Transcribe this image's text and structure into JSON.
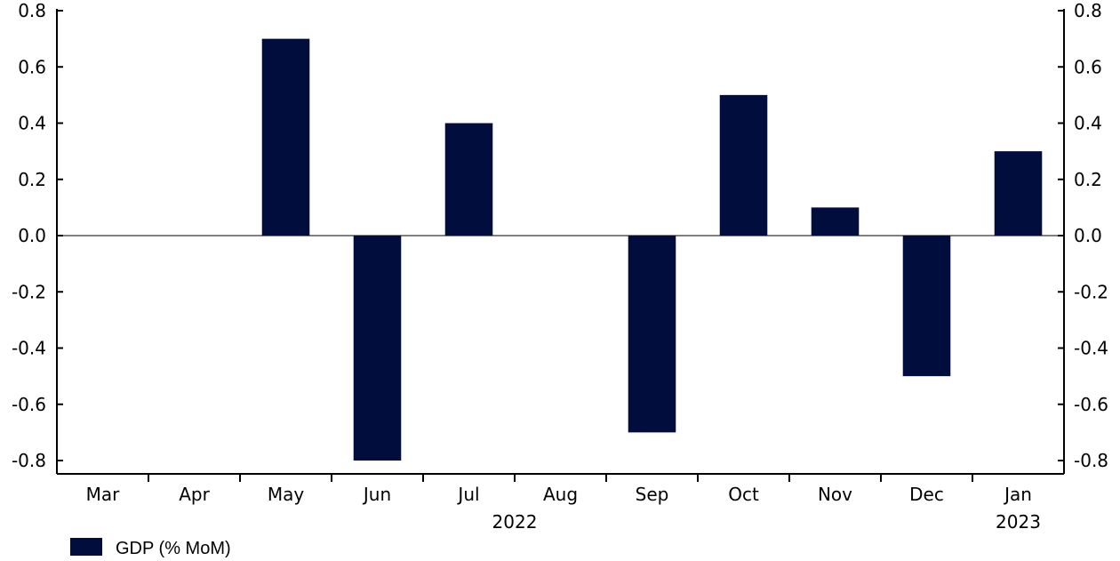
{
  "chart_data": {
    "type": "bar",
    "categories": [
      "Mar",
      "Apr",
      "May",
      "Jun",
      "Jul",
      "Aug",
      "Sep",
      "Oct",
      "Nov",
      "Dec",
      "Jan"
    ],
    "year_labels": [
      {
        "label": "2022",
        "category_span": [
          "Mar",
          "Dec"
        ]
      },
      {
        "label": "2023",
        "category_span": [
          "Jan",
          "Jan"
        ]
      }
    ],
    "series": [
      {
        "name": "GDP (% MoM)",
        "values": [
          0.0,
          0.0,
          0.7,
          -0.8,
          0.4,
          0.0,
          -0.7,
          0.5,
          0.1,
          -0.5,
          0.3
        ],
        "color": "#000d3d"
      }
    ],
    "ylim": [
      -0.8,
      0.8
    ],
    "yticks": [
      0.8,
      0.6,
      0.4,
      0.2,
      0.0,
      -0.2,
      -0.4,
      -0.6,
      -0.8
    ],
    "ytick_labels": [
      "0.8",
      "0.6",
      "0.4",
      "0.2",
      "0.0",
      "-0.2",
      "-0.4",
      "-0.6",
      "-0.8"
    ],
    "y_axis_sides": [
      "left",
      "right"
    ],
    "grid": false,
    "legend_position": "bottom-left",
    "title": "",
    "xlabel": "",
    "ylabel": ""
  }
}
